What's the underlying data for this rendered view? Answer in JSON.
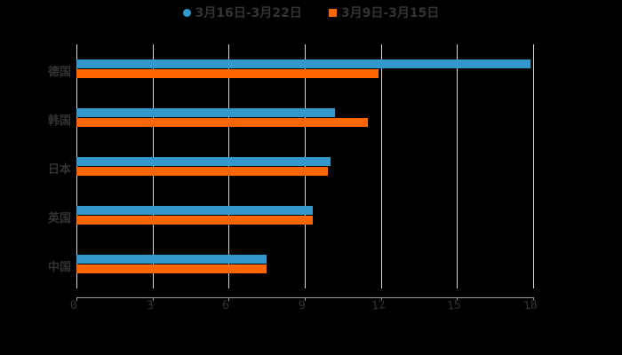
{
  "chart_data": {
    "type": "bar",
    "orientation": "horizontal",
    "title": "",
    "xlabel": "",
    "ylabel": "",
    "xlim": [
      0,
      18
    ],
    "x_ticks": [
      "0",
      "3",
      "6",
      "9",
      "12",
      "15",
      "18"
    ],
    "categories": [
      "德国",
      "韩国",
      "日本",
      "英国",
      "中国"
    ],
    "series": [
      {
        "name": "3月16日-3月22日",
        "color": "#3399cc",
        "values": [
          17.9,
          10.2,
          10.0,
          9.3,
          7.5
        ]
      },
      {
        "name": "3月9日-3月15日",
        "color": "#ff6600",
        "values": [
          11.9,
          11.5,
          9.9,
          9.3,
          7.5
        ]
      }
    ],
    "grid": true,
    "legend_position": "top"
  },
  "legend": {
    "items": [
      {
        "label": "3月16日-3月22日",
        "color": "#3399cc",
        "marker": "circle"
      },
      {
        "label": "3月9日-3月15日",
        "color": "#ff6600",
        "marker": "square"
      }
    ]
  }
}
